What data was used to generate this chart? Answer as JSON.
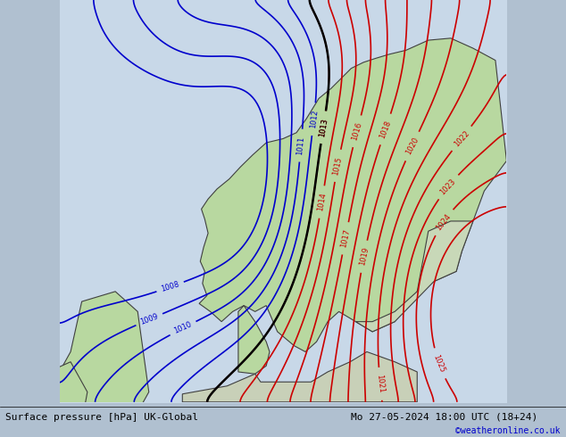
{
  "title_left": "Surface pressure [hPa] UK-Global",
  "title_right": "Mo 27-05-2024 18:00 UTC (18+24)",
  "copyright": "©weatheronline.co.uk",
  "bg_color": "#c8d8e8",
  "land_color_low": "#c8d8e0",
  "land_color_high": "#a8d888",
  "sea_color": "#c8d8e8",
  "contour_low_color": "#0000cc",
  "contour_high_color": "#cc0000",
  "contour_border_color": "#000000",
  "pressure_low_min": 1008,
  "pressure_low_max": 1013,
  "pressure_high_min": 1014,
  "pressure_high_max": 1025,
  "figsize": [
    6.34,
    4.9
  ],
  "dpi": 100
}
